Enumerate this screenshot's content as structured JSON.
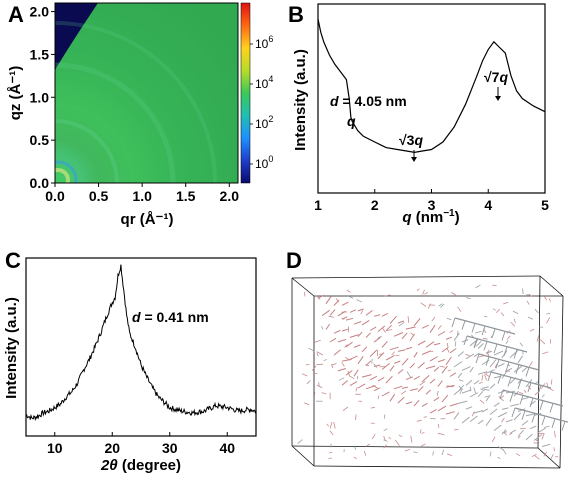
{
  "panels": {
    "A": {
      "label": "A",
      "chart_data": {
        "type": "heatmap",
        "xlabel": "qr (Å⁻¹)",
        "ylabel": "qz (Å⁻¹)",
        "xlim": [
          0.0,
          2.1
        ],
        "ylim": [
          0.0,
          2.1
        ],
        "xticks": [
          "0.0",
          "0.5",
          "1.0",
          "1.5",
          "2.0"
        ],
        "yticks": [
          "0.0",
          "0.5",
          "1.0",
          "1.5",
          "2.0"
        ],
        "colorbar_ticks": [
          {
            "base": "10",
            "exp": "6"
          },
          {
            "base": "10",
            "exp": "4"
          },
          {
            "base": "10",
            "exp": "2"
          },
          {
            "base": "10",
            "exp": "0"
          }
        ],
        "colorscale": [
          "#0a0a6e",
          "#1e3cc8",
          "#1e90ff",
          "#20c0b0",
          "#3cc85a",
          "#b4dc28",
          "#ffd21e",
          "#ff6414",
          "#dc1414"
        ]
      }
    },
    "B": {
      "label": "B",
      "chart_data": {
        "type": "line",
        "xlabel_main": "q",
        "xlabel_unit": " (nm",
        "xlabel_exp": "−1",
        "xlabel_close": ")",
        "ylabel": "Intensity (a.u.)",
        "xlim": [
          1,
          5
        ],
        "ylim": [
          0,
          1
        ],
        "xticks": [
          "1",
          "2",
          "3",
          "4",
          "5"
        ],
        "annotations": {
          "d_prefix": "d",
          "d_value": " = 4.05 nm",
          "peak1": "q",
          "peak2_root": "√3",
          "peak2_q": "q",
          "peak3_root": "√7",
          "peak3_q": "q"
        },
        "x": [
          1.0,
          1.05,
          1.1,
          1.2,
          1.3,
          1.4,
          1.5,
          1.55,
          1.58,
          1.6,
          1.7,
          1.8,
          2.0,
          2.2,
          2.4,
          2.6,
          2.7,
          2.8,
          3.0,
          3.2,
          3.4,
          3.6,
          3.8,
          3.9,
          4.0,
          4.1,
          4.2,
          4.3,
          4.4,
          4.5,
          4.6,
          4.8,
          5.0
        ],
        "y": [
          0.92,
          0.85,
          0.8,
          0.73,
          0.68,
          0.64,
          0.6,
          0.5,
          0.4,
          0.38,
          0.33,
          0.3,
          0.27,
          0.24,
          0.23,
          0.22,
          0.215,
          0.22,
          0.23,
          0.27,
          0.35,
          0.47,
          0.62,
          0.7,
          0.76,
          0.8,
          0.77,
          0.74,
          0.62,
          0.54,
          0.5,
          0.46,
          0.43
        ]
      }
    },
    "C": {
      "label": "C",
      "chart_data": {
        "type": "line",
        "xlabel_main": "2θ",
        "xlabel_unit": " (degree)",
        "ylabel": "Intensity (a.u.)",
        "xlim": [
          5,
          45
        ],
        "ylim": [
          0,
          1
        ],
        "xticks": [
          "10",
          "20",
          "30",
          "40"
        ],
        "annotations": {
          "d_prefix": "d",
          "d_value": " = 0.41 nm"
        },
        "x": [
          5,
          6,
          7,
          8,
          9,
          10,
          11,
          12,
          13,
          14,
          15,
          16,
          17,
          18,
          19,
          20,
          20.5,
          21,
          21.5,
          22,
          22.5,
          23,
          24,
          25,
          26,
          27,
          28,
          29,
          30,
          32,
          34,
          36,
          38,
          40,
          42,
          44,
          45
        ],
        "y": [
          0.12,
          0.1,
          0.11,
          0.13,
          0.14,
          0.16,
          0.18,
          0.22,
          0.25,
          0.3,
          0.37,
          0.43,
          0.5,
          0.58,
          0.67,
          0.75,
          0.78,
          0.9,
          0.96,
          0.82,
          0.68,
          0.58,
          0.5,
          0.4,
          0.33,
          0.27,
          0.22,
          0.19,
          0.16,
          0.14,
          0.13,
          0.14,
          0.17,
          0.16,
          0.14,
          0.15,
          0.14
        ]
      }
    },
    "D": {
      "label": "D"
    }
  }
}
